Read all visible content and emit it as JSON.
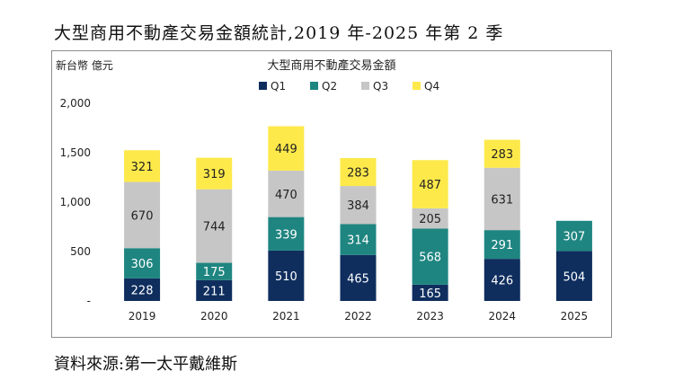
{
  "heading": "大型商用不動產交易金額統計,2019 年-2025 年第 2 季",
  "source": "資料來源:第一太平戴維斯",
  "chart_data": {
    "type": "bar",
    "stacked": true,
    "title": "大型商用不動產交易金額",
    "ylabel": "新台幣 億元",
    "xlabel": "",
    "categories": [
      "2019",
      "2020",
      "2021",
      "2022",
      "2023",
      "2024",
      "2025"
    ],
    "ylim": [
      0,
      2000
    ],
    "yticks": [
      0,
      500,
      1000,
      1500,
      2000
    ],
    "ytick_labels": [
      "-",
      "500",
      "1,000",
      "1,500",
      "2,000"
    ],
    "legend_position": "top",
    "grid": false,
    "series": [
      {
        "name": "Q1",
        "color": "#0f2e5e",
        "values": [
          228,
          211,
          510,
          465,
          165,
          426,
          504
        ]
      },
      {
        "name": "Q2",
        "color": "#1f8580",
        "values": [
          306,
          175,
          339,
          314,
          568,
          291,
          307
        ]
      },
      {
        "name": "Q3",
        "color": "#c6c6c6",
        "values": [
          670,
          744,
          470,
          384,
          205,
          631,
          null
        ]
      },
      {
        "name": "Q4",
        "color": "#fde94a",
        "values": [
          321,
          319,
          449,
          283,
          487,
          283,
          null
        ]
      }
    ]
  }
}
